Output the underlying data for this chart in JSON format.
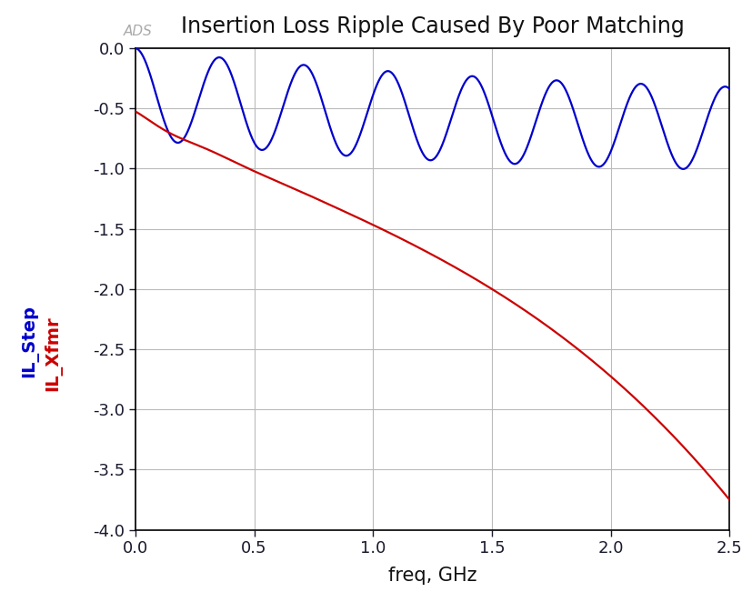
{
  "title": "Insertion Loss Ripple Caused By Poor Matching",
  "xlabel": "freq, GHz",
  "xlim": [
    0.0,
    2.5
  ],
  "ylim": [
    -4.0,
    0.0
  ],
  "xticks": [
    0.0,
    0.5,
    1.0,
    1.5,
    2.0,
    2.5
  ],
  "yticks": [
    0.0,
    -0.5,
    -1.0,
    -1.5,
    -2.0,
    -2.5,
    -3.0,
    -3.5,
    -4.0
  ],
  "blue_label": "IL_Step",
  "red_label": "IL_Xfmr",
  "ads_label": "ADS",
  "bg_color": "#ffffff",
  "grid_color": "#bbbbbb",
  "blue_color": "#0000cc",
  "red_color": "#cc0000",
  "ads_color": "#aaaaaa",
  "title_fontsize": 17,
  "xlabel_fontsize": 15,
  "tick_fontsize": 13,
  "legend_fontsize": 14,
  "tick_color": "#1a1a2e",
  "spine_color": "#000000",
  "line_width": 1.6
}
